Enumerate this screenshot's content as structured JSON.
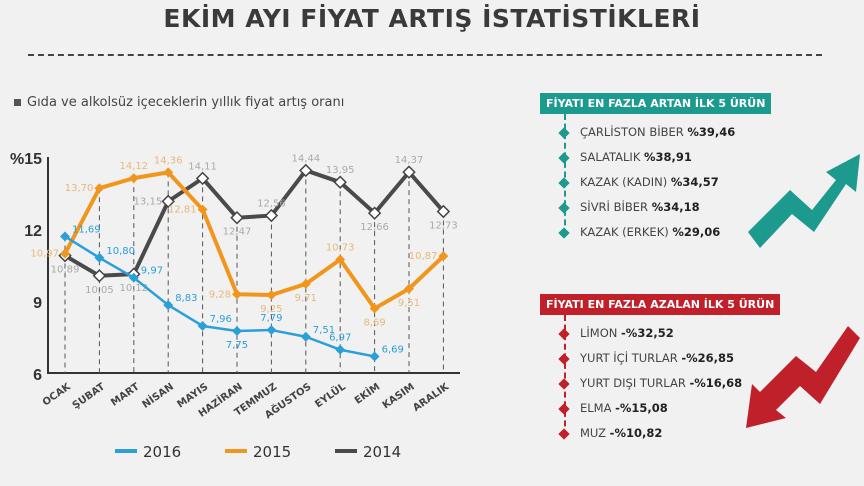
{
  "title": "EKİM AYI FİYAT ARTIŞ İSTATİSTİKLERİ",
  "subtitle": "Gıda ve alkolsüz içeceklerin yıllık fiyat artış oranı",
  "colors": {
    "2016": "#2a9fd8",
    "2015": "#f0961c",
    "2014": "#4a4a4a",
    "teal": "#1d9a8e",
    "red": "#c0202a"
  },
  "chart_data": {
    "type": "line",
    "ylabel": "%",
    "ylim": [
      6,
      15
    ],
    "yticks": [
      "6",
      "9",
      "12",
      "%15"
    ],
    "categories": [
      "OCAK",
      "ŞUBAT",
      "MART",
      "NİSAN",
      "MAYIS",
      "HAZİRAN",
      "TEMMUZ",
      "AĞUSTOS",
      "EYLÜL",
      "EKİM",
      "KASIM",
      "ARALIK"
    ],
    "series": [
      {
        "name": "2016",
        "values": [
          11.69,
          10.8,
          9.97,
          8.83,
          7.96,
          7.75,
          7.79,
          7.51,
          6.97,
          6.69,
          null,
          null
        ],
        "labels": [
          "11,69",
          "10,80",
          "9,97",
          "8,83",
          "7,96",
          "7,75",
          "7,79",
          "7,51",
          "6,97",
          "6,69",
          "",
          ""
        ]
      },
      {
        "name": "2015",
        "values": [
          10.97,
          13.7,
          14.12,
          14.36,
          12.81,
          9.28,
          9.25,
          9.71,
          10.73,
          8.69,
          9.51,
          10.87
        ],
        "labels": [
          "10,97",
          "13,70",
          "14,12",
          "14,36",
          "12,81",
          "9,28",
          "9,25",
          "9,71",
          "10,73",
          "8,69",
          "9,51",
          "10,87"
        ]
      },
      {
        "name": "2014",
        "values": [
          10.89,
          10.05,
          10.12,
          13.15,
          14.11,
          12.47,
          12.56,
          14.44,
          13.95,
          12.66,
          14.37,
          12.73
        ],
        "labels": [
          "10,89",
          "10,05",
          "10,12",
          "13,15",
          "14,11",
          "12,47",
          "12,56",
          "14,44",
          "13,95",
          "12,66",
          "14,37",
          "12,73"
        ]
      }
    ],
    "legend": [
      "2016",
      "2015",
      "2014"
    ]
  },
  "top_up": {
    "title": "FİYATI EN FAZLA ARTAN İLK 5 ÜRÜN",
    "items": [
      {
        "name": "ÇARLİSTON BİBER",
        "value": "%39,46"
      },
      {
        "name": "SALATALIK",
        "value": "%38,91"
      },
      {
        "name": "KAZAK (KADIN)",
        "value": "%34,57"
      },
      {
        "name": "SİVRİ BİBER",
        "value": "%34,18"
      },
      {
        "name": "KAZAK (ERKEK)",
        "value": "%29,06"
      }
    ]
  },
  "top_down": {
    "title": "FİYATI EN FAZLA AZALAN İLK 5 ÜRÜN",
    "items": [
      {
        "name": "LİMON",
        "value": "-%32,52"
      },
      {
        "name": "YURT İÇİ TURLAR",
        "value": "-%26,85"
      },
      {
        "name": "YURT DIŞI TURLAR",
        "value": "-%16,68"
      },
      {
        "name": "ELMA",
        "value": "-%15,08"
      },
      {
        "name": "MUZ",
        "value": "-%10,82"
      }
    ]
  }
}
